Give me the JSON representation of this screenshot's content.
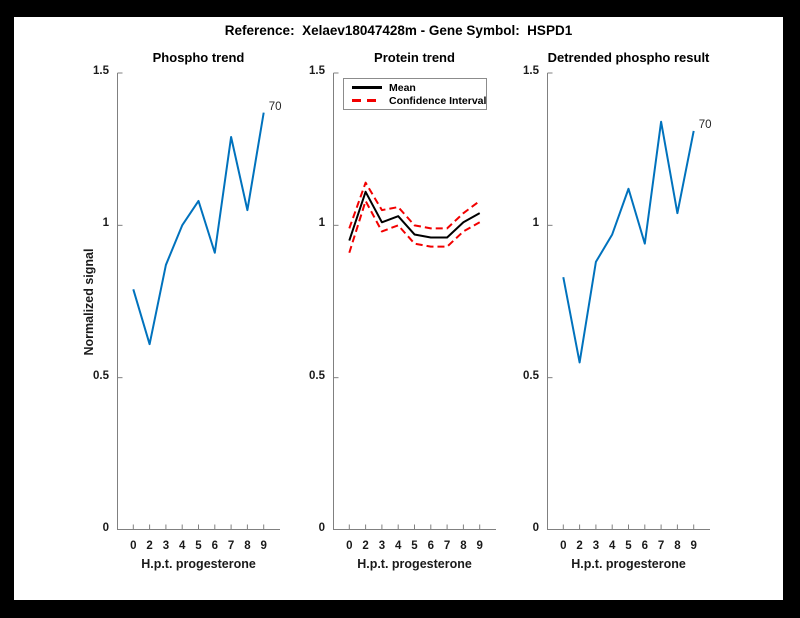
{
  "figure_title": "Reference:  Xelaev18047428m - Gene Symbol:  HSPD1",
  "colors": {
    "line_blue": "#0072BD",
    "mean_black": "#000000",
    "ci_red": "#F20000",
    "axis_gray": "#808080",
    "text": "#1a1a1a",
    "page_border": "#000000",
    "canvas": "#ffffff"
  },
  "axes_shared": {
    "xlabel": "H.p.t. progesterone",
    "ylabel": "Normalized signal",
    "x_ticklabels": [
      "0",
      "2",
      "3",
      "4",
      "5",
      "6",
      "7",
      "8",
      "9"
    ],
    "y_ticks": [
      0,
      0.5,
      1,
      1.5
    ],
    "y_ticklabels": [
      "0",
      "0.5",
      "1",
      "1.5"
    ],
    "ylim": [
      0,
      1.5
    ]
  },
  "chart_data": [
    {
      "type": "line",
      "title": "Phospho trend",
      "xlabel": "H.p.t. progesterone",
      "ylabel": "Normalized signal",
      "x_categories": [
        "0",
        "2",
        "3",
        "4",
        "5",
        "6",
        "7",
        "8",
        "9"
      ],
      "ylim": [
        0,
        1.5
      ],
      "grid": false,
      "series": [
        {
          "name": "phospho-signal",
          "color": "#0072BD",
          "dash": "solid",
          "width": 2,
          "values": [
            0.79,
            0.61,
            0.87,
            1.0,
            1.08,
            0.91,
            1.29,
            1.05,
            1.37
          ]
        }
      ],
      "annotation": {
        "text": "70",
        "anchor": "last-point"
      }
    },
    {
      "type": "line",
      "title": "Protein trend",
      "xlabel": "H.p.t. progesterone",
      "x_categories": [
        "0",
        "2",
        "3",
        "4",
        "5",
        "6",
        "7",
        "8",
        "9"
      ],
      "ylim": [
        0,
        1.5
      ],
      "grid": false,
      "series": [
        {
          "name": "confidence-upper",
          "color": "#F20000",
          "dash": "dashed",
          "width": 2,
          "values": [
            0.99,
            1.14,
            1.05,
            1.06,
            1.0,
            0.99,
            0.99,
            1.04,
            1.08
          ]
        },
        {
          "name": "confidence-lower",
          "color": "#F20000",
          "dash": "dashed",
          "width": 2,
          "values": [
            0.91,
            1.08,
            0.98,
            1.0,
            0.94,
            0.93,
            0.93,
            0.98,
            1.01
          ]
        },
        {
          "name": "mean",
          "color": "#000000",
          "dash": "solid",
          "width": 2,
          "values": [
            0.95,
            1.11,
            1.01,
            1.03,
            0.97,
            0.96,
            0.96,
            1.01,
            1.04
          ]
        }
      ],
      "legend": {
        "position": "northwest",
        "entries": [
          {
            "label": "Mean",
            "color": "#000000",
            "dash": "solid"
          },
          {
            "label": "Confidence Interval",
            "color": "#F20000",
            "dash": "dashed"
          }
        ]
      }
    },
    {
      "type": "line",
      "title": "Detrended phospho result",
      "xlabel": "H.p.t. progesterone",
      "x_categories": [
        "0",
        "2",
        "3",
        "4",
        "5",
        "6",
        "7",
        "8",
        "9"
      ],
      "ylim": [
        0,
        1.5
      ],
      "grid": false,
      "series": [
        {
          "name": "detrended-phospho",
          "color": "#0072BD",
          "dash": "solid",
          "width": 2,
          "values": [
            0.83,
            0.55,
            0.88,
            0.97,
            1.12,
            0.94,
            1.34,
            1.04,
            1.31
          ]
        }
      ],
      "annotation": {
        "text": "70",
        "anchor": "last-point"
      }
    }
  ]
}
